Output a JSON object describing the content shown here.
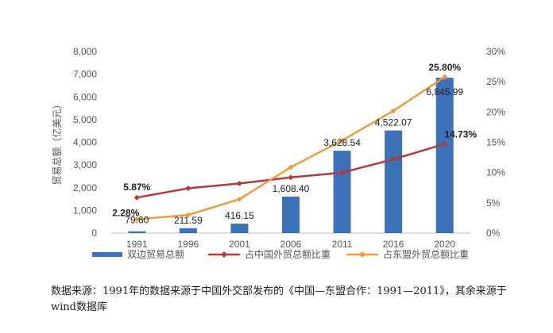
{
  "chart_data": {
    "type": "bar",
    "categories": [
      "1991",
      "1996",
      "2001",
      "2006",
      "2011",
      "2016",
      "2020"
    ],
    "ylabel": "贸易总额（亿美元）",
    "ylim": [
      0,
      8000
    ],
    "y_ticks": [
      "0",
      "1,000",
      "2,000",
      "3,000",
      "4,000",
      "5,000",
      "6,000",
      "7,000",
      "8,000"
    ],
    "y2lim": [
      0,
      30
    ],
    "y2_ticks": [
      "0%",
      "5%",
      "10%",
      "15%",
      "20%",
      "25%",
      "30%"
    ],
    "grid": false,
    "legend_position": "bottom",
    "series": [
      {
        "name": "双边贸易总额",
        "kind": "bar",
        "axis": "left",
        "color": "#3d72b8",
        "values": [
          79.6,
          211.59,
          416.15,
          1608.4,
          3628.54,
          4522.07,
          6845.99
        ],
        "labels": [
          "79.60",
          "211.59",
          "416.15",
          "1,608.40",
          "3,628.54",
          "4,522.07",
          "6,845.99"
        ]
      },
      {
        "name": "占中国外贸总额比重",
        "kind": "line",
        "axis": "right",
        "color": "#b23a3a",
        "values": [
          5.87,
          7.4,
          8.2,
          9.2,
          10.0,
          12.2,
          14.73
        ],
        "labels": [
          "5.87%",
          "",
          "",
          "",
          "",
          "",
          "14.73%"
        ]
      },
      {
        "name": "占东盟外贸总额比重",
        "kind": "line",
        "axis": "right",
        "color": "#f09a3e",
        "values": [
          2.28,
          3.0,
          5.6,
          10.9,
          15.3,
          20.2,
          25.8
        ],
        "labels": [
          "2.28%",
          "",
          "",
          "",
          "",
          "",
          "25.80%"
        ]
      }
    ]
  },
  "caption": "数据来源：1991年的数据来源于中国外交部发布的《中国—东盟合作：1991—2011》，其余来源于wind数据库"
}
